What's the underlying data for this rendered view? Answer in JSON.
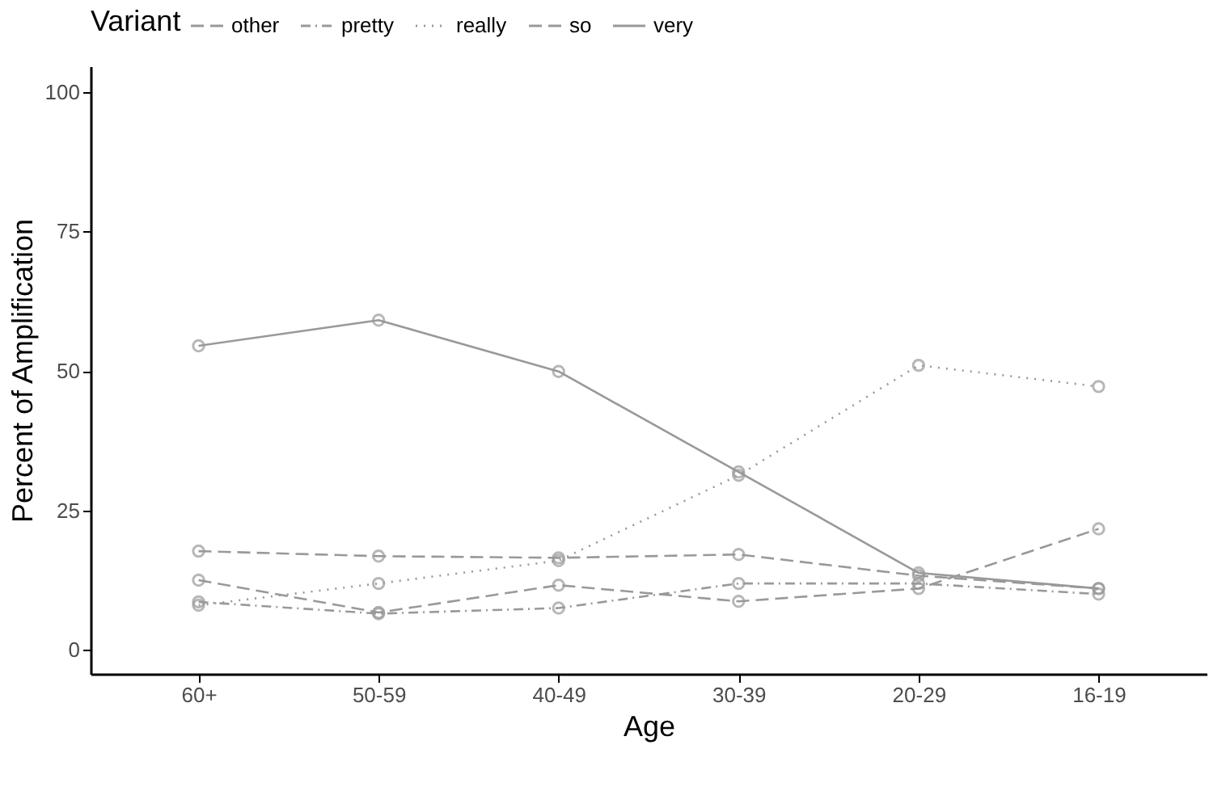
{
  "chart_data": {
    "type": "line",
    "xlabel": "Age",
    "ylabel": "Percent of Amplification",
    "legend_title": "Variant",
    "categories": [
      "60+",
      "50-59",
      "40-49",
      "30-39",
      "20-29",
      "16-19"
    ],
    "series": [
      {
        "name": "other",
        "color": "#999999",
        "line_style": "dashed",
        "values": [
          17.7,
          16.8,
          16.5,
          17.1,
          13.3,
          11.0
        ]
      },
      {
        "name": "pretty",
        "color": "#999999",
        "line_style": "dashdot",
        "values": [
          8.6,
          6.5,
          7.5,
          11.9,
          11.9,
          10.0
        ]
      },
      {
        "name": "really",
        "color": "#999999",
        "line_style": "dotted",
        "values": [
          8.0,
          11.9,
          16.0,
          31.3,
          51.0,
          47.2
        ]
      },
      {
        "name": "so",
        "color": "#999999",
        "line_style": "dashed",
        "values": [
          12.5,
          6.7,
          11.6,
          8.7,
          11.0,
          21.7
        ]
      },
      {
        "name": "very",
        "color": "#999999",
        "line_style": "solid",
        "values": [
          54.5,
          59.1,
          49.9,
          31.9,
          13.8,
          11.0
        ]
      }
    ],
    "ylim": [
      -4.3,
      104.6
    ],
    "yticks": [
      0,
      25,
      50,
      75,
      100
    ],
    "grid": false,
    "legend": "top",
    "marker": "circle"
  }
}
